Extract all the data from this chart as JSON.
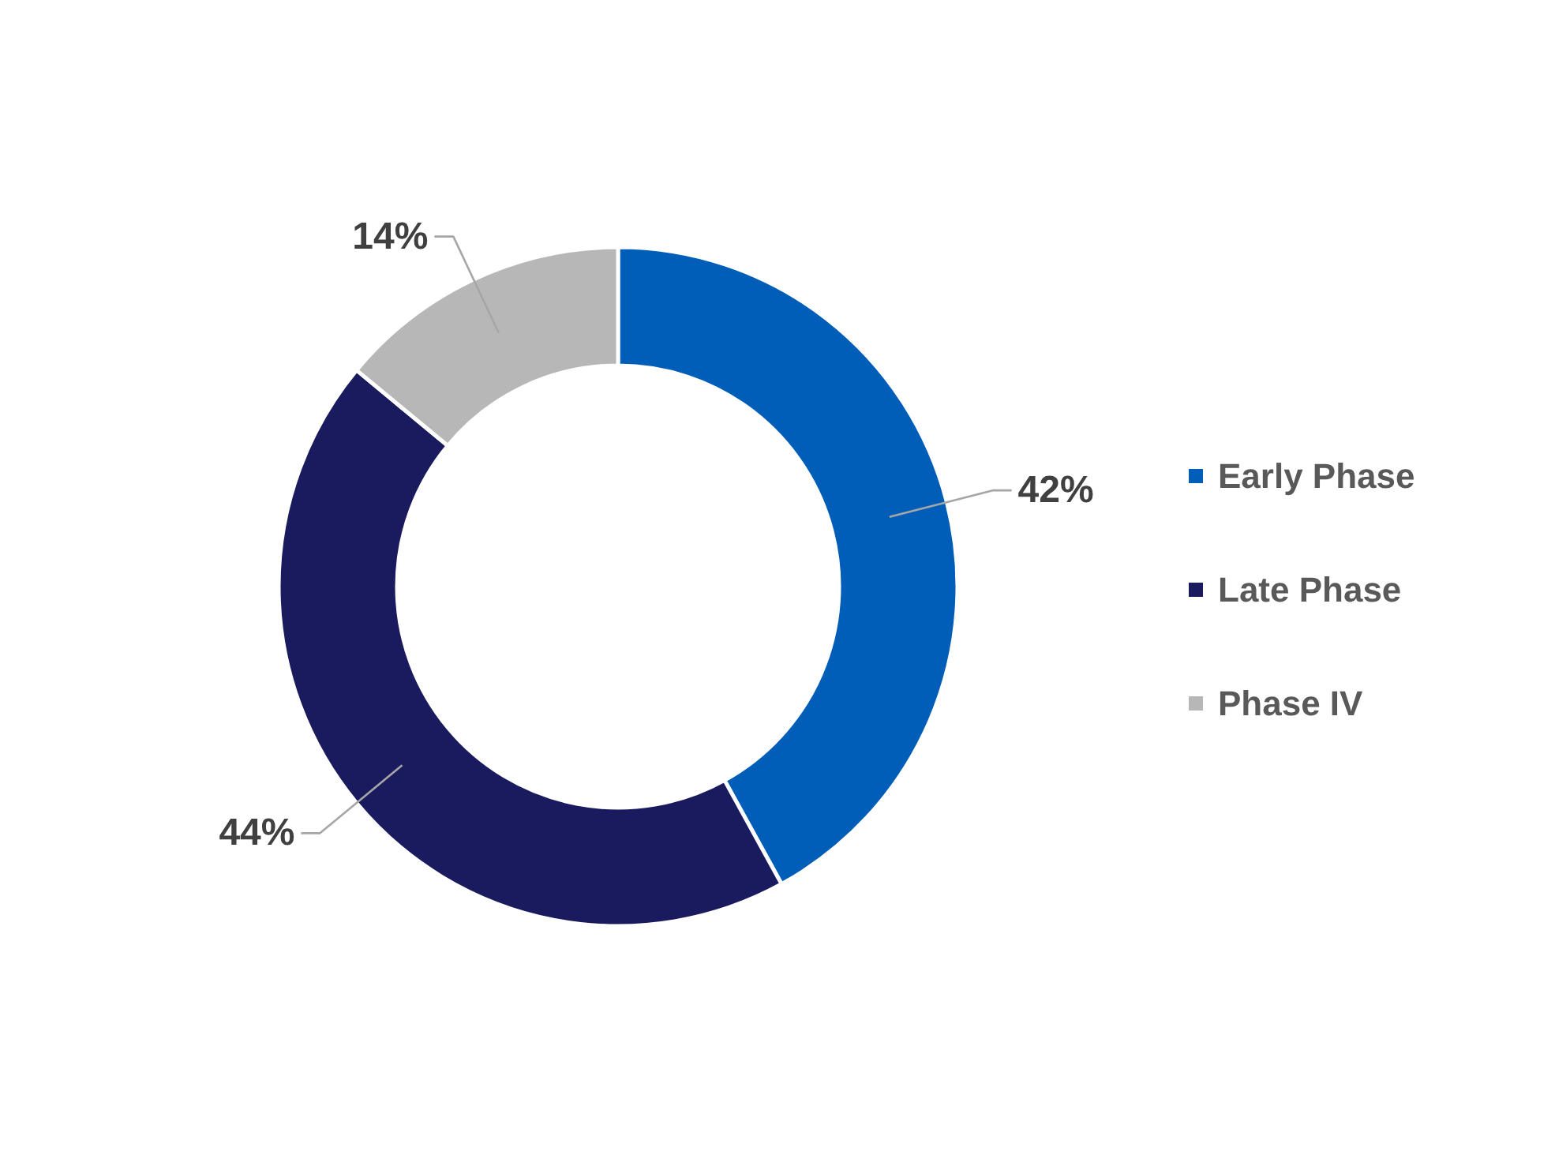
{
  "chart_data": {
    "type": "donut",
    "categories": [
      "Early Phase",
      "Late Phase",
      "Phase IV"
    ],
    "values": [
      42,
      44,
      14
    ],
    "colors": [
      "#005eb8",
      "#1a1a5e",
      "#b7b7b7"
    ],
    "value_labels": [
      "42%",
      "44%",
      "14%"
    ],
    "legend": "right"
  }
}
